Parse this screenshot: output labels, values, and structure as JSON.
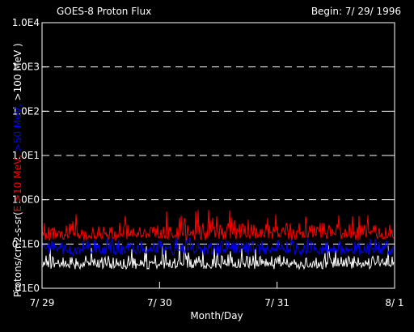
{
  "chart_data": {
    "type": "line",
    "title": "GOES-8 Proton Flux",
    "begin_label": "Begin: 7/ 29/ 1996",
    "xlabel": "Month/Day",
    "ylabel": {
      "prefix": "Protons/cm2-s-sr(",
      "parts": [
        {
          "text": "E >10 MeV, ",
          "color": "#ff0000"
        },
        {
          "text": ">50 MeV, ",
          "color": "#0000ff"
        },
        {
          "text": ">100 MeV )",
          "color": "#ffffff"
        }
      ]
    },
    "y_scale": "log",
    "ylim": [
      0.01,
      10000
    ],
    "y_ticks": [
      {
        "value": 10000,
        "label": "1.0E4"
      },
      {
        "value": 1000,
        "label": "1.0E3"
      },
      {
        "value": 100,
        "label": "1.0E2"
      },
      {
        "value": 10,
        "label": "1.0E1"
      },
      {
        "value": 1,
        "label": "1.0E0"
      },
      {
        "value": 0.1,
        "label": "0.1E0"
      },
      {
        "value": 0.01,
        "label": ".01E0"
      }
    ],
    "x_ticks": [
      "7/ 29",
      "7/ 30",
      "7/ 31",
      "8/ 1"
    ],
    "xlim": [
      "1996-07-29",
      "1996-08-01"
    ],
    "grid": "dashed horizontal at decades",
    "series": [
      {
        "energy": ">10 MeV",
        "color": "#ff0000",
        "typical": 0.2,
        "range": [
          0.12,
          0.6
        ]
      },
      {
        "energy": ">50 MeV",
        "color": "#0000ff",
        "typical": 0.085,
        "range": [
          0.055,
          0.14
        ]
      },
      {
        "energy": ">100 MeV",
        "color": "#ffffff",
        "typical": 0.04,
        "range": [
          0.027,
          0.1
        ]
      }
    ]
  }
}
